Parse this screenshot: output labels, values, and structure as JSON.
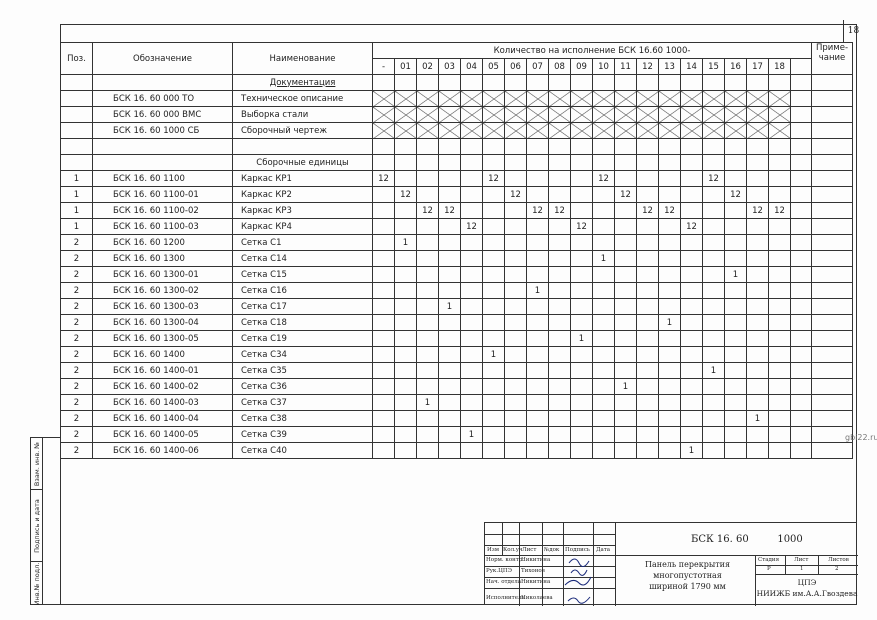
{
  "page_number": "18",
  "table": {
    "headers": {
      "pos": "Поз.",
      "designation": "Обозначение",
      "name": "Наименование",
      "quantity": "Количество на исполнение БСК 16.60   1000-",
      "note": "Приме-\nчание",
      "variants": [
        "-",
        "01",
        "02",
        "03",
        "04",
        "05",
        "06",
        "07",
        "08",
        "09",
        "10",
        "11",
        "12",
        "13",
        "14",
        "15",
        "16",
        "17",
        "18",
        ""
      ]
    },
    "rows": [
      {
        "type": "section",
        "name": "Документация"
      },
      {
        "type": "doc",
        "pos": "",
        "designation": "БСК 16. 60   000  ТО",
        "name": "Техническое описание"
      },
      {
        "type": "doc",
        "pos": "",
        "designation": "БСК 16. 60   000  ВМС",
        "name": "Выборка стали"
      },
      {
        "type": "doc",
        "pos": "",
        "designation": "БСК 16. 60   1000  СБ",
        "name": "Сборочный чертеж"
      },
      {
        "type": "empty"
      },
      {
        "type": "section",
        "name": "Сборочные единицы",
        "underline": false
      },
      {
        "type": "item",
        "pos": "1",
        "designation": "БСК 16. 60   1100",
        "name": "Каркас КР1",
        "q": {
          "-": "12",
          "05": "12",
          "10": "12",
          "15": "12"
        }
      },
      {
        "type": "item",
        "pos": "1",
        "designation": "БСК 16. 60   1100-01",
        "name": "Каркас КР2",
        "q": {
          "01": "12",
          "06": "12",
          "11": "12",
          "16": "12"
        }
      },
      {
        "type": "item",
        "pos": "1",
        "designation": "БСК 16. 60   1100-02",
        "name": "Каркас КР3",
        "q": {
          "02": "12",
          "03": "12",
          "07": "12",
          "08": "12",
          "12": "12",
          "13": "12",
          "17": "12",
          "18": "12"
        }
      },
      {
        "type": "item",
        "pos": "1",
        "designation": "БСК 16. 60   1100-03",
        "name": "Каркас КР4",
        "q": {
          "04": "12",
          "09": "12",
          "14": "12"
        }
      },
      {
        "type": "item",
        "pos": "2",
        "designation": "БСК 16. 60   1200",
        "name": "Сетка С1",
        "q": {
          "01": "1"
        }
      },
      {
        "type": "item",
        "pos": "2",
        "designation": "БСК 16. 60   1300",
        "name": "Сетка С14",
        "q": {
          "10": "1"
        }
      },
      {
        "type": "item",
        "pos": "2",
        "designation": "БСК 16. 60   1300-01",
        "name": "Сетка С15",
        "q": {
          "16": "1"
        }
      },
      {
        "type": "item",
        "pos": "2",
        "designation": "БСК 16. 60   1300-02",
        "name": "Сетка С16",
        "q": {
          "07": "1"
        }
      },
      {
        "type": "item",
        "pos": "2",
        "designation": "БСК 16. 60   1300-03",
        "name": "Сетка С17",
        "q": {
          "03": "1"
        }
      },
      {
        "type": "item",
        "pos": "2",
        "designation": "БСК 16. 60   1300-04",
        "name": "Сетка С18",
        "q": {
          "13": "1"
        }
      },
      {
        "type": "item",
        "pos": "2",
        "designation": "БСК 16. 60   1300-05",
        "name": "Сетка С19",
        "q": {
          "09": "1"
        }
      },
      {
        "type": "item",
        "pos": "2",
        "designation": "БСК 16. 60   1400",
        "name": "Сетка С34",
        "q": {
          "05": "1"
        }
      },
      {
        "type": "item",
        "pos": "2",
        "designation": "БСК 16. 60   1400-01",
        "name": "Сетка С35",
        "q": {
          "15": "1"
        }
      },
      {
        "type": "item",
        "pos": "2",
        "designation": "БСК 16. 60   1400-02",
        "name": "Сетка С36",
        "q": {
          "11": "1"
        }
      },
      {
        "type": "item",
        "pos": "2",
        "designation": "БСК 16. 60   1400-03",
        "name": "Сетка С37",
        "q": {
          "02": "1"
        }
      },
      {
        "type": "item",
        "pos": "2",
        "designation": "БСК 16. 60   1400-04",
        "name": "Сетка С38",
        "q": {
          "17": "1"
        }
      },
      {
        "type": "item",
        "pos": "2",
        "designation": "БСК 16. 60   1400-05",
        "name": "Сетка С39",
        "q": {
          "04": "1"
        }
      },
      {
        "type": "item",
        "pos": "2",
        "designation": "БСК 16. 60   1400-06",
        "name": "Сетка С40",
        "q": {
          "14": "1"
        }
      }
    ]
  },
  "side_stamp": [
    "Взам. инв. №",
    "Подпись и дата",
    "Инв.№ подл."
  ],
  "title_block": {
    "col_headers": [
      "Изм",
      "Кол.уч",
      "Лист",
      "№док",
      "Подпись",
      "Дата"
    ],
    "roles": [
      {
        "role": "Норм. контр.",
        "name": "Никитина"
      },
      {
        "role": "Рук.ЦПЭ",
        "name": "Тихонов"
      },
      {
        "role": "Нач. отдела",
        "name": "Никитина"
      },
      {
        "role": "Исполнитель",
        "name": "Николаева"
      }
    ],
    "code": "БСК 16. 60         1000",
    "description": "Панель перекрытия\nмногопустотная\nшириной  1790 мм",
    "stage_label": "Стадия",
    "sheet_label": "Лист",
    "sheets_label": "Листов",
    "stage": "Р",
    "sheet": "1",
    "sheets": "2",
    "org": "ЦПЭ\nНИИЖБ им.А.А.Гвоздева"
  },
  "watermark": "gbi22.ru"
}
